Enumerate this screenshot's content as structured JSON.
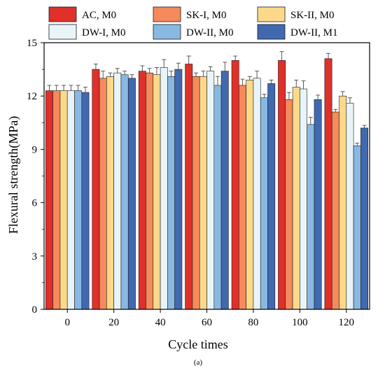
{
  "chart_data": {
    "type": "bar",
    "categories": [
      "0",
      "20",
      "40",
      "60",
      "80",
      "100",
      "120"
    ],
    "xlabel": "Cycle times",
    "ylabel": "Flexural strength(MPa)",
    "ylim": [
      0,
      15
    ],
    "yticks": [
      "0",
      "3",
      "6",
      "9",
      "12",
      "15"
    ],
    "caption": "(a)",
    "legend_position": "top",
    "error_bars": true,
    "series": [
      {
        "name": "AC, M0",
        "color": "#e0302a",
        "values": [
          12.3,
          13.5,
          13.4,
          13.8,
          14.0,
          14.0,
          14.1
        ],
        "errors": [
          0.3,
          0.3,
          0.3,
          0.45,
          0.25,
          0.5,
          0.3
        ]
      },
      {
        "name": "SK-I, M0",
        "color": "#f58a5c",
        "values": [
          12.3,
          13.0,
          13.3,
          13.1,
          12.6,
          11.8,
          11.1
        ],
        "errors": [
          0.3,
          0.4,
          0.25,
          0.2,
          0.35,
          0.4,
          0.15
        ]
      },
      {
        "name": "SK-II, M0",
        "color": "#fcd98a",
        "values": [
          12.3,
          13.1,
          13.2,
          13.1,
          12.9,
          12.5,
          12.0
        ],
        "errors": [
          0.3,
          0.2,
          0.4,
          0.3,
          0.2,
          0.4,
          0.25
        ]
      },
      {
        "name": "DW-I, M0",
        "color": "#e8f4f8",
        "values": [
          12.3,
          13.3,
          13.6,
          13.4,
          13.0,
          12.4,
          11.6
        ],
        "errors": [
          0.3,
          0.25,
          0.45,
          0.25,
          0.4,
          0.45,
          0.3
        ]
      },
      {
        "name": "DW-II, M0",
        "color": "#89b9e0",
        "values": [
          12.3,
          13.2,
          13.1,
          12.6,
          11.9,
          10.4,
          9.2
        ],
        "errors": [
          0.3,
          0.2,
          0.3,
          0.5,
          0.2,
          0.4,
          0.15
        ]
      },
      {
        "name": "DW-II, M1",
        "color": "#4169b0",
        "values": [
          12.2,
          13.0,
          13.5,
          13.4,
          12.7,
          11.8,
          10.2
        ],
        "errors": [
          0.3,
          0.2,
          0.35,
          0.5,
          0.2,
          0.25,
          0.15
        ]
      }
    ]
  }
}
